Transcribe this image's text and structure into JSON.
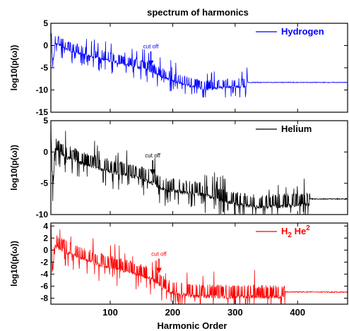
{
  "chart_data": {
    "title": "spectrum of harmonics",
    "type": "line",
    "xlabel": "Harmonic Order",
    "xlim": [
      5,
      480
    ],
    "xticks": [
      100,
      200,
      300,
      400
    ],
    "ylabel": "log10(p(ω))",
    "panels": [
      {
        "series": [
          {
            "name": "Hydrogen",
            "color": "#0000ff"
          }
        ],
        "ylim": [
          -15,
          5
        ],
        "yticks": [
          5,
          0,
          -5,
          -10,
          -15
        ],
        "annotation": {
          "text": "cut off",
          "x": 165,
          "y": -4.8
        },
        "trend": [
          {
            "x": 5,
            "y": 5
          },
          {
            "x": 8,
            "y": -4
          },
          {
            "x": 12,
            "y": 1.5
          },
          {
            "x": 30,
            "y": 0
          },
          {
            "x": 60,
            "y": -1.3
          },
          {
            "x": 100,
            "y": -2.6
          },
          {
            "x": 140,
            "y": -3.9
          },
          {
            "x": 160,
            "y": -4.6
          },
          {
            "x": 175,
            "y": -5.6
          },
          {
            "x": 190,
            "y": -6.6
          },
          {
            "x": 220,
            "y": -8.0
          },
          {
            "x": 250,
            "y": -9.0
          },
          {
            "x": 280,
            "y": -8.6
          },
          {
            "x": 320,
            "y": -8.3
          },
          {
            "x": 480,
            "y": -8.3
          }
        ],
        "noise_end": 320
      },
      {
        "series": [
          {
            "name": "Helium",
            "color": "#000000"
          }
        ],
        "ylim": [
          -10,
          5
        ],
        "yticks": [
          5,
          0,
          -5,
          -10
        ],
        "annotation": {
          "text": "cut off",
          "x": 168,
          "y": -3.8
        },
        "trend": [
          {
            "x": 5,
            "y": 5
          },
          {
            "x": 8,
            "y": -5.5
          },
          {
            "x": 12,
            "y": 1.3
          },
          {
            "x": 30,
            "y": 0
          },
          {
            "x": 60,
            "y": -1.2
          },
          {
            "x": 100,
            "y": -2.3
          },
          {
            "x": 150,
            "y": -3.4
          },
          {
            "x": 170,
            "y": -4.2
          },
          {
            "x": 185,
            "y": -5.2
          },
          {
            "x": 250,
            "y": -6.0
          },
          {
            "x": 300,
            "y": -7.5
          },
          {
            "x": 340,
            "y": -8.0
          },
          {
            "x": 380,
            "y": -7.8
          },
          {
            "x": 420,
            "y": -7.5
          },
          {
            "x": 480,
            "y": -7.5
          }
        ],
        "noise_end": 420
      },
      {
        "series": [
          {
            "name": "H",
            "sub": "2",
            "name2": " He",
            "sup": "2",
            "color": "#ff0000"
          }
        ],
        "ylim": [
          -9,
          4.5
        ],
        "yticks": [
          4,
          2,
          0,
          -2,
          -4,
          -6,
          -8
        ],
        "annotation": {
          "text": "cut off",
          "x": 178,
          "y": -4.0
        },
        "trend": [
          {
            "x": 5,
            "y": 4.3
          },
          {
            "x": 8,
            "y": -2.5
          },
          {
            "x": 12,
            "y": 1.5
          },
          {
            "x": 40,
            "y": 0
          },
          {
            "x": 80,
            "y": -1.5
          },
          {
            "x": 120,
            "y": -2.6
          },
          {
            "x": 165,
            "y": -3.8
          },
          {
            "x": 180,
            "y": -5.0
          },
          {
            "x": 195,
            "y": -6.2
          },
          {
            "x": 230,
            "y": -6.8
          },
          {
            "x": 280,
            "y": -6.9
          },
          {
            "x": 480,
            "y": -7.0
          }
        ],
        "noise_end": 380
      }
    ]
  }
}
